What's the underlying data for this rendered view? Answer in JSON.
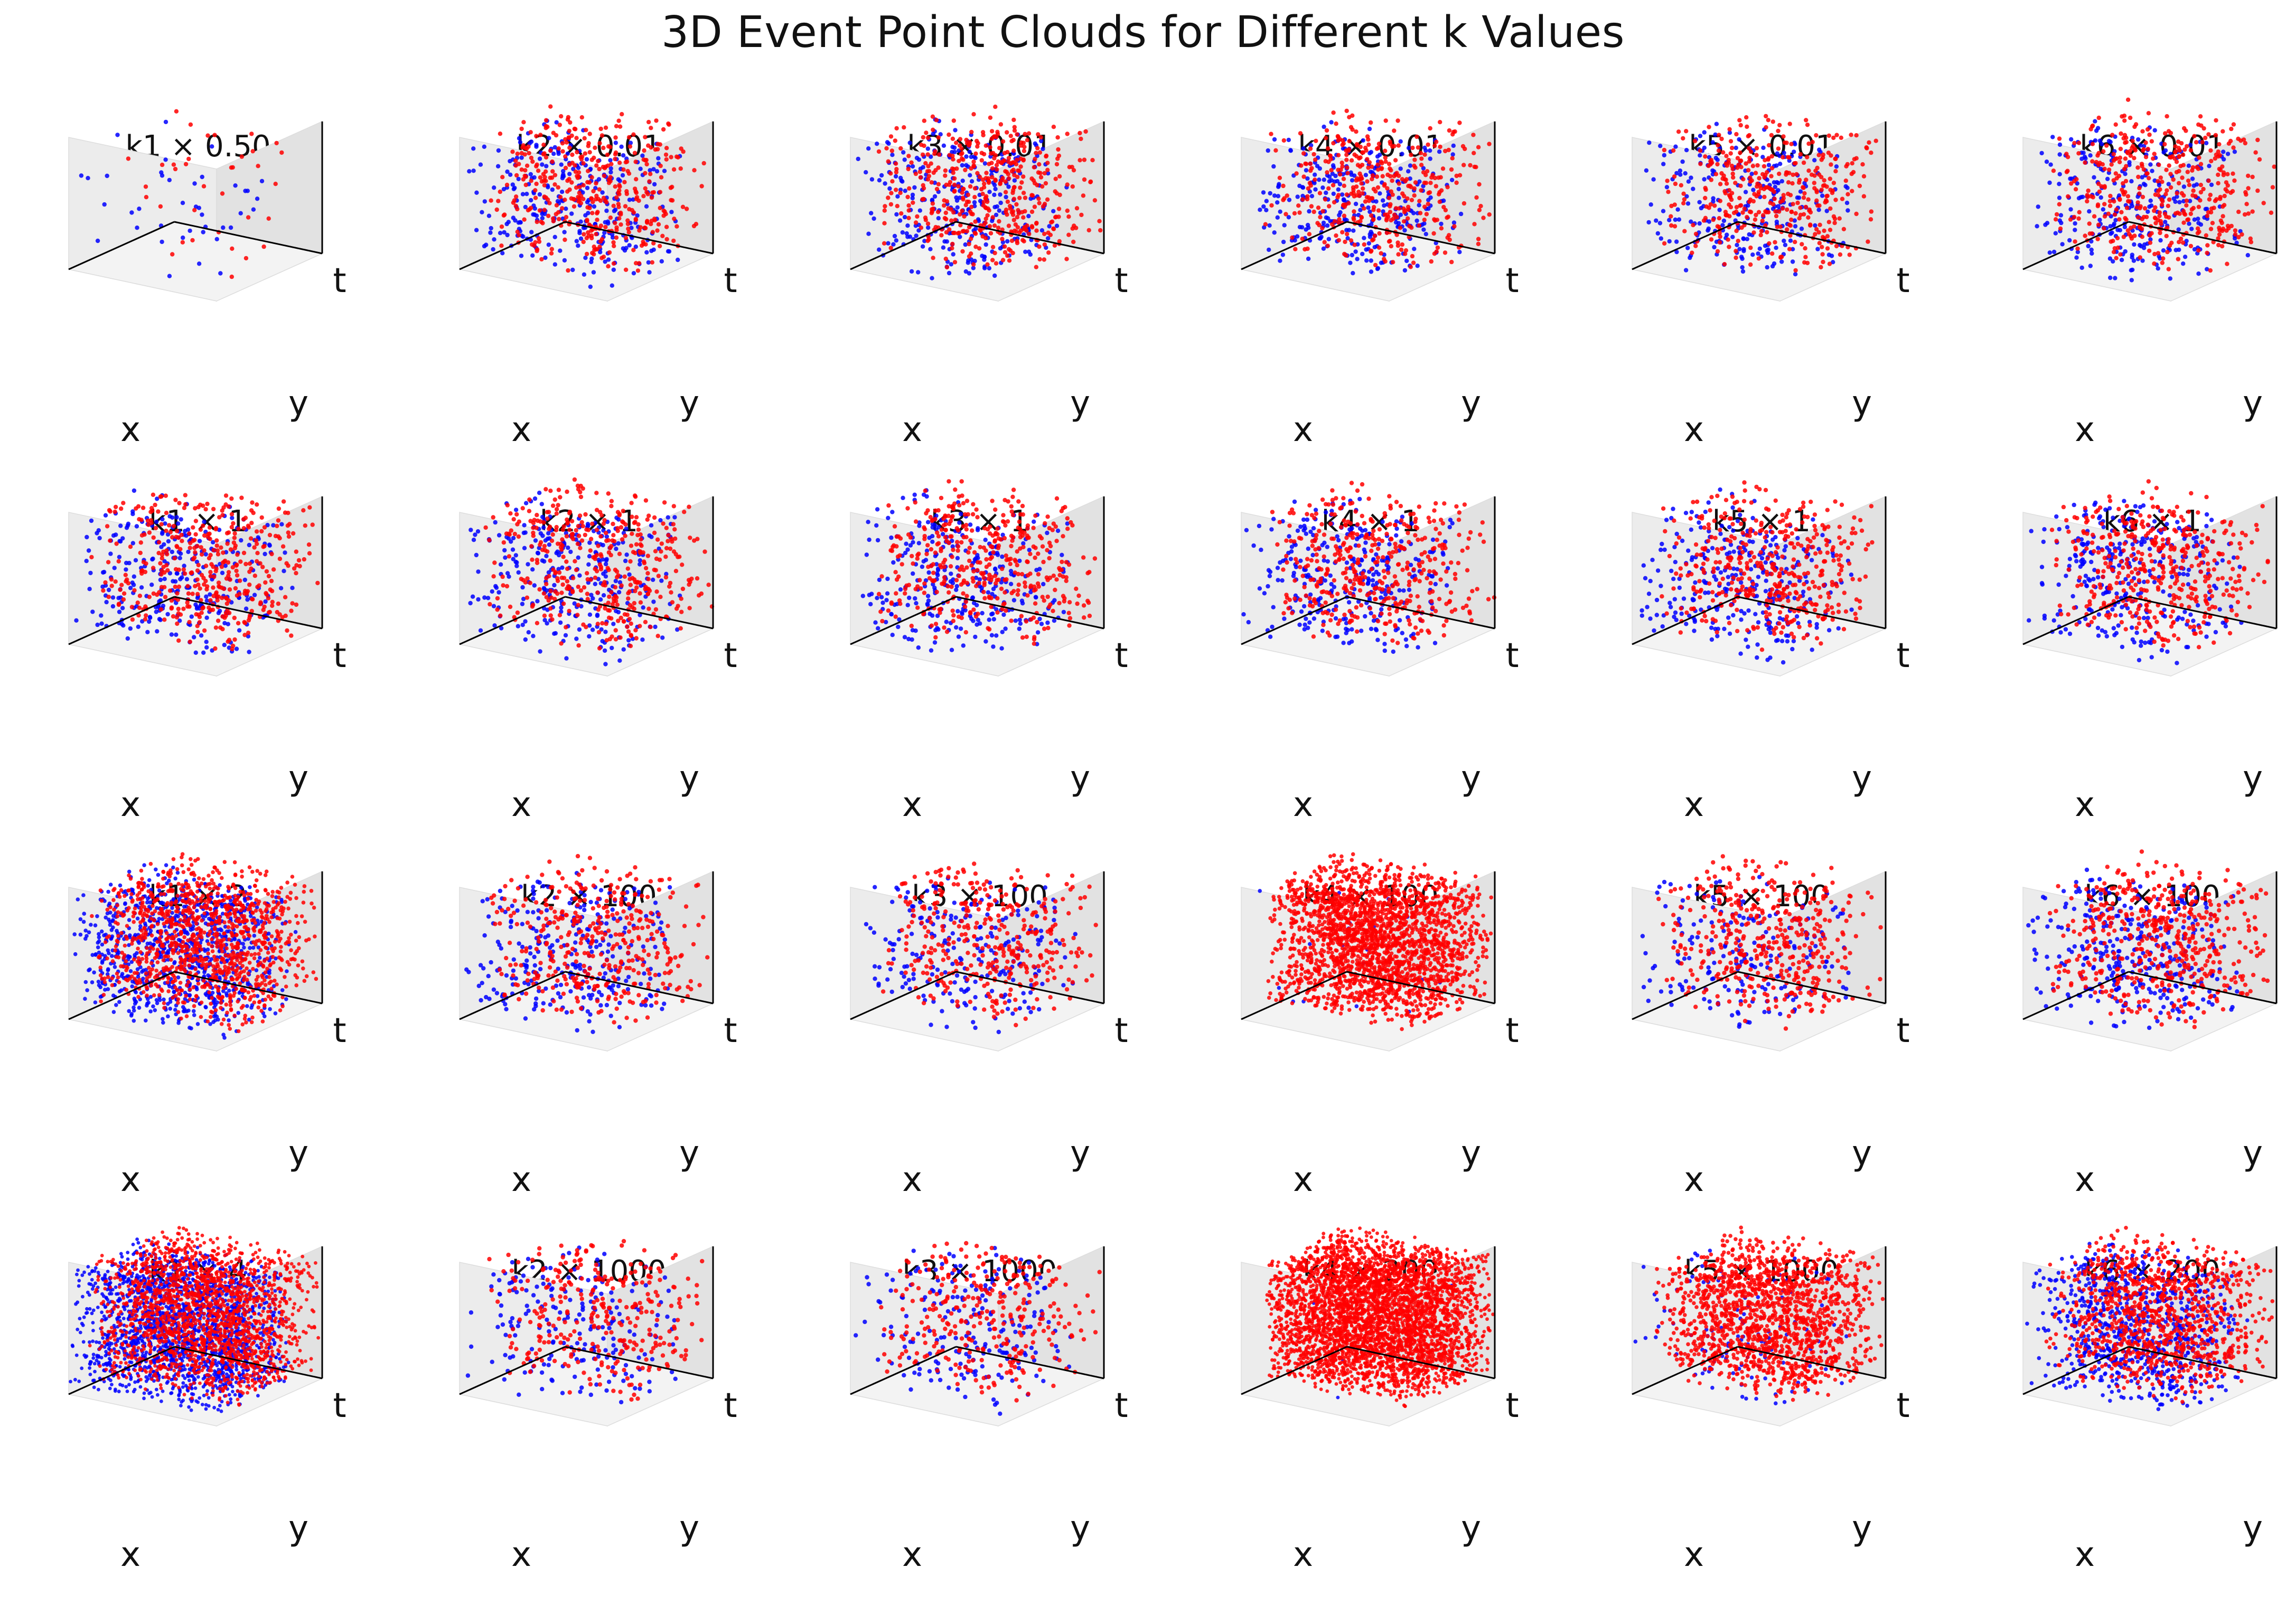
{
  "figure": {
    "title": "3D Event Point Clouds for Different k Values"
  },
  "colors": {
    "positive": "#ff0000",
    "negative": "#0000ff",
    "pane_left": "#ececec",
    "pane_right": "#e2e2e2",
    "pane_floor": "#f3f3f3",
    "axis_line": "#000000"
  },
  "chart_data": [
    {
      "type": "scatter",
      "title": "k1 × 0.50",
      "xlabel": "x",
      "ylabel": "y",
      "zlabel": "t",
      "projection": "3d",
      "series": [
        {
          "color": "blue",
          "points": 40
        },
        {
          "color": "red",
          "points": 35
        }
      ]
    },
    {
      "type": "scatter",
      "title": "k2 × 0.01",
      "xlabel": "x",
      "ylabel": "y",
      "zlabel": "t",
      "projection": "3d",
      "series": [
        {
          "color": "blue",
          "points": 300
        },
        {
          "color": "red",
          "points": 420
        }
      ]
    },
    {
      "type": "scatter",
      "title": "k3 × 0.01",
      "xlabel": "x",
      "ylabel": "y",
      "zlabel": "t",
      "projection": "3d",
      "series": [
        {
          "color": "blue",
          "points": 300
        },
        {
          "color": "red",
          "points": 480
        }
      ]
    },
    {
      "type": "scatter",
      "title": "k4 × 0.01",
      "xlabel": "x",
      "ylabel": "y",
      "zlabel": "t",
      "projection": "3d",
      "series": [
        {
          "color": "blue",
          "points": 310
        },
        {
          "color": "red",
          "points": 400
        }
      ]
    },
    {
      "type": "scatter",
      "title": "k5 × 0.01",
      "xlabel": "x",
      "ylabel": "y",
      "zlabel": "t",
      "projection": "3d",
      "series": [
        {
          "color": "blue",
          "points": 260
        },
        {
          "color": "red",
          "points": 400
        }
      ]
    },
    {
      "type": "scatter",
      "title": "k6 × 0.01",
      "xlabel": "x",
      "ylabel": "y",
      "zlabel": "t",
      "projection": "3d",
      "series": [
        {
          "color": "blue",
          "points": 280
        },
        {
          "color": "red",
          "points": 420
        }
      ]
    },
    {
      "type": "scatter",
      "title": "k1 × 1",
      "xlabel": "x",
      "ylabel": "y",
      "zlabel": "t",
      "projection": "3d",
      "series": [
        {
          "color": "blue",
          "points": 300
        },
        {
          "color": "red",
          "points": 420
        }
      ]
    },
    {
      "type": "scatter",
      "title": "k2 × 1",
      "xlabel": "x",
      "ylabel": "y",
      "zlabel": "t",
      "projection": "3d",
      "series": [
        {
          "color": "blue",
          "points": 300
        },
        {
          "color": "red",
          "points": 420
        }
      ]
    },
    {
      "type": "scatter",
      "title": "k3 × 1",
      "xlabel": "x",
      "ylabel": "y",
      "zlabel": "t",
      "projection": "3d",
      "series": [
        {
          "color": "blue",
          "points": 300
        },
        {
          "color": "red",
          "points": 420
        }
      ]
    },
    {
      "type": "scatter",
      "title": "k4 × 1",
      "xlabel": "x",
      "ylabel": "y",
      "zlabel": "t",
      "projection": "3d",
      "series": [
        {
          "color": "blue",
          "points": 300
        },
        {
          "color": "red",
          "points": 420
        }
      ]
    },
    {
      "type": "scatter",
      "title": "k5 × 1",
      "xlabel": "x",
      "ylabel": "y",
      "zlabel": "t",
      "projection": "3d",
      "series": [
        {
          "color": "blue",
          "points": 300
        },
        {
          "color": "red",
          "points": 420
        }
      ]
    },
    {
      "type": "scatter",
      "title": "k6 × 1",
      "xlabel": "x",
      "ylabel": "y",
      "zlabel": "t",
      "projection": "3d",
      "series": [
        {
          "color": "blue",
          "points": 300
        },
        {
          "color": "red",
          "points": 420
        }
      ]
    },
    {
      "type": "scatter",
      "title": "k1 × 2",
      "xlabel": "x",
      "ylabel": "y",
      "zlabel": "t",
      "projection": "3d",
      "series": [
        {
          "color": "blue",
          "points": 900
        },
        {
          "color": "red",
          "points": 1100
        }
      ]
    },
    {
      "type": "scatter",
      "title": "k2 × 100",
      "xlabel": "x",
      "ylabel": "y",
      "zlabel": "t",
      "projection": "3d",
      "series": [
        {
          "color": "blue",
          "points": 280
        },
        {
          "color": "red",
          "points": 380
        }
      ]
    },
    {
      "type": "scatter",
      "title": "k3 × 100",
      "xlabel": "x",
      "ylabel": "y",
      "zlabel": "t",
      "projection": "3d",
      "series": [
        {
          "color": "blue",
          "points": 220
        },
        {
          "color": "red",
          "points": 360
        }
      ]
    },
    {
      "type": "scatter",
      "title": "k4 × 100",
      "xlabel": "x",
      "ylabel": "y",
      "zlabel": "t",
      "projection": "3d",
      "series": [
        {
          "color": "blue",
          "points": 20
        },
        {
          "color": "red",
          "points": 2200
        }
      ]
    },
    {
      "type": "scatter",
      "title": "k5 × 100",
      "xlabel": "x",
      "ylabel": "y",
      "zlabel": "t",
      "projection": "3d",
      "series": [
        {
          "color": "blue",
          "points": 200
        },
        {
          "color": "red",
          "points": 420
        }
      ]
    },
    {
      "type": "scatter",
      "title": "k6 × 100",
      "xlabel": "x",
      "ylabel": "y",
      "zlabel": "t",
      "projection": "3d",
      "series": [
        {
          "color": "blue",
          "points": 320
        },
        {
          "color": "red",
          "points": 480
        }
      ]
    },
    {
      "type": "scatter",
      "title": "k1 × 4",
      "xlabel": "x",
      "ylabel": "y",
      "zlabel": "t",
      "projection": "3d",
      "series": [
        {
          "color": "blue",
          "points": 1900
        },
        {
          "color": "red",
          "points": 1900
        }
      ]
    },
    {
      "type": "scatter",
      "title": "k2 × 1000",
      "xlabel": "x",
      "ylabel": "y",
      "zlabel": "t",
      "projection": "3d",
      "series": [
        {
          "color": "blue",
          "points": 200
        },
        {
          "color": "red",
          "points": 300
        }
      ]
    },
    {
      "type": "scatter",
      "title": "k3 × 1000",
      "xlabel": "x",
      "ylabel": "y",
      "zlabel": "t",
      "projection": "3d",
      "series": [
        {
          "color": "blue",
          "points": 200
        },
        {
          "color": "red",
          "points": 300
        }
      ]
    },
    {
      "type": "scatter",
      "title": "k4 × 200",
      "xlabel": "x",
      "ylabel": "y",
      "zlabel": "t",
      "projection": "3d",
      "series": [
        {
          "color": "blue",
          "points": 5
        },
        {
          "color": "red",
          "points": 4000
        }
      ]
    },
    {
      "type": "scatter",
      "title": "k5 × 1000",
      "xlabel": "x",
      "ylabel": "y",
      "zlabel": "t",
      "projection": "3d",
      "series": [
        {
          "color": "blue",
          "points": 120
        },
        {
          "color": "red",
          "points": 1500
        }
      ]
    },
    {
      "type": "scatter",
      "title": "k6 × 200",
      "xlabel": "x",
      "ylabel": "y",
      "zlabel": "t",
      "projection": "3d",
      "series": [
        {
          "color": "blue",
          "points": 800
        },
        {
          "color": "red",
          "points": 1000
        }
      ]
    }
  ]
}
